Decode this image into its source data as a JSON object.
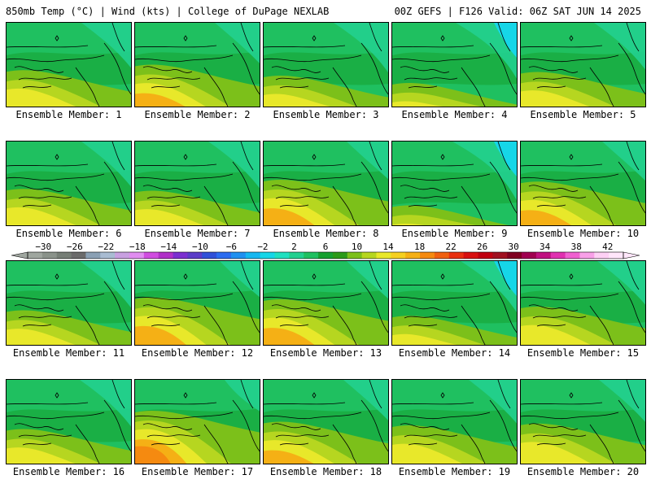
{
  "header": {
    "left_title": "850mb Temp (°C) | Wind (kts) | College of DuPage NEXLAB",
    "right_title": "00Z GEFS | F126 Valid: 06Z SAT JUN 14 2025"
  },
  "panels": [
    {
      "label": "Ensemble Member: 1",
      "warmth": 0.55
    },
    {
      "label": "Ensemble Member: 2",
      "warmth": 0.7
    },
    {
      "label": "Ensemble Member: 3",
      "warmth": 0.4
    },
    {
      "label": "Ensemble Member: 4",
      "warmth": 0.2
    },
    {
      "label": "Ensemble Member: 5",
      "warmth": 0.5
    },
    {
      "label": "Ensemble Member: 6",
      "warmth": 0.55
    },
    {
      "label": "Ensemble Member: 7",
      "warmth": 0.5
    },
    {
      "label": "Ensemble Member: 8",
      "warmth": 0.8
    },
    {
      "label": "Ensemble Member: 9",
      "warmth": 0.1
    },
    {
      "label": "Ensemble Member: 10",
      "warmth": 0.75
    },
    {
      "label": "Ensemble Member: 11",
      "warmth": 0.5
    },
    {
      "label": "Ensemble Member: 12",
      "warmth": 0.85
    },
    {
      "label": "Ensemble Member: 13",
      "warmth": 0.8
    },
    {
      "label": "Ensemble Member: 14",
      "warmth": 0.35
    },
    {
      "label": "Ensemble Member: 15",
      "warmth": 0.6
    },
    {
      "label": "Ensemble Member: 16",
      "warmth": 0.5
    },
    {
      "label": "Ensemble Member: 17",
      "warmth": 1.0
    },
    {
      "label": "Ensemble Member: 18",
      "warmth": 0.7
    },
    {
      "label": "Ensemble Member: 19",
      "warmth": 0.6
    },
    {
      "label": "Ensemble Member: 20",
      "warmth": 0.65
    }
  ],
  "colorbar": {
    "tick_labels": [
      "−30",
      "−26",
      "−22",
      "−18",
      "−14",
      "−10",
      "−6",
      "−2",
      "2",
      "6",
      "10",
      "14",
      "18",
      "22",
      "26",
      "30",
      "34",
      "38",
      "42"
    ],
    "colors": [
      "#9fa69f",
      "#8a928a",
      "#767e76",
      "#6b6b6b",
      "#8aa0b4",
      "#a9bcd2",
      "#c8a0e0",
      "#e08cf0",
      "#d04ce0",
      "#b030c8",
      "#7b2fd0",
      "#5a3cc8",
      "#3050d8",
      "#2b6cf0",
      "#1f90f0",
      "#15b7f0",
      "#16d6e8",
      "#20e0c0",
      "#22d08f",
      "#1fc060",
      "#16a030",
      "#2b9a18",
      "#7cc01a",
      "#b6d620",
      "#e8e82a",
      "#f5d020",
      "#f5b015",
      "#f58a10",
      "#f06010",
      "#e83010",
      "#d81010",
      "#c00010",
      "#a01020",
      "#800020",
      "#a00050",
      "#c01080",
      "#e030b0",
      "#f060d0",
      "#f8a0e8",
      "#fdd0f4",
      "#ffe6fa"
    ],
    "tick_min": -30,
    "tick_max": 42,
    "value_min": -32,
    "value_max": 44
  },
  "palette": {
    "cold": "#16d6e8",
    "cool": "#22d08f",
    "green": "#1fc060",
    "dkgreen": "#16a030",
    "mild": "#7cc01a",
    "warm": "#b6d620",
    "yellow": "#e8e82a",
    "hot": "#f5b015",
    "hotter": "#f58a10"
  }
}
